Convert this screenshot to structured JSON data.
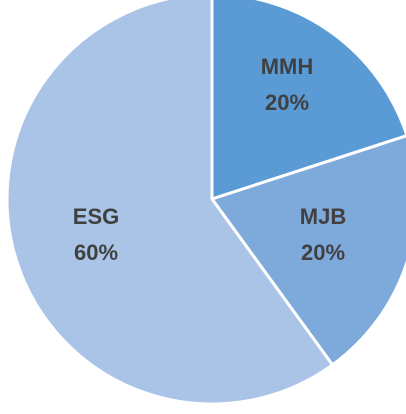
{
  "chart_data": {
    "type": "pie",
    "categories": [
      "MMH",
      "MJB",
      "ESG"
    ],
    "values": [
      20,
      20,
      60
    ],
    "value_labels": [
      "20%",
      "20%",
      "60%"
    ],
    "colors": [
      "#5B9BD5",
      "#7EA9DB",
      "#A9C4E6"
    ],
    "start_angle_deg": 0,
    "direction": "clockwise",
    "slice_border_color": "#ffffff",
    "title": "",
    "legend": "none"
  }
}
